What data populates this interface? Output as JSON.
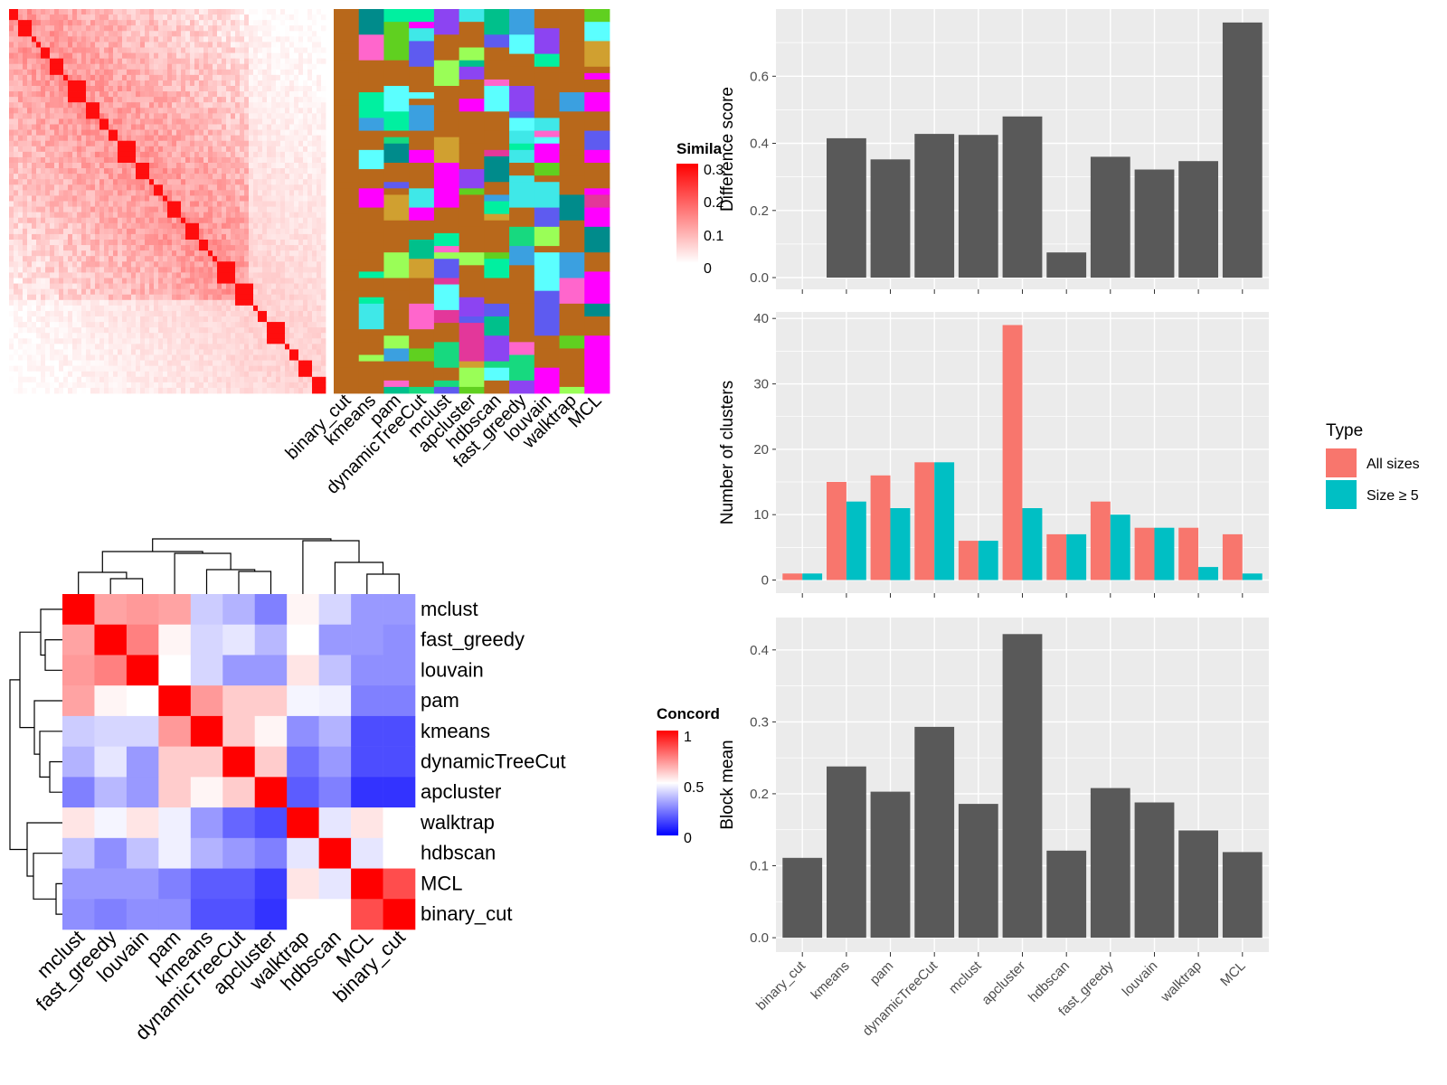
{
  "colors": {
    "panel_bg": "#ebebeb",
    "grid": "#ffffff",
    "bar_dark": "#595959",
    "all_sizes": "#f8766d",
    "size_ge5": "#00bfc4",
    "sim_high": "#ff0000",
    "conc_high": "#ff0000",
    "conc_mid": "#ffffff",
    "conc_low": "#0000ff",
    "cluster_default": "#b8681b"
  },
  "similarity_heatmap": {
    "legend_title": "Simila",
    "legend_ticks": [
      "0.3",
      "0.2",
      "0.1",
      "0"
    ],
    "methods": [
      "binary_cut",
      "kmeans",
      "pam",
      "dynamicTreeCut",
      "mclust",
      "apcluster",
      "hdbscan",
      "fast_greedy",
      "louvain",
      "walktrap",
      "MCL"
    ]
  },
  "concordance_heatmap": {
    "legend_title": "Concord",
    "legend_ticks": [
      "1",
      "0.5",
      "0"
    ],
    "row_labels": [
      "mclust",
      "fast_greedy",
      "louvain",
      "pam",
      "kmeans",
      "dynamicTreeCut",
      "apcluster",
      "walktrap",
      "hdbscan",
      "MCL",
      "binary_cut"
    ],
    "col_labels": [
      "mclust",
      "fast_greedy",
      "louvain",
      "pam",
      "kmeans",
      "dynamicTreeCut",
      "apcluster",
      "walktrap",
      "hdbscan",
      "MCL",
      "binary_cut"
    ],
    "matrix": [
      [
        1.0,
        0.68,
        0.7,
        0.68,
        0.4,
        0.35,
        0.25,
        0.52,
        0.42,
        0.3,
        0.3
      ],
      [
        0.68,
        1.0,
        0.75,
        0.52,
        0.42,
        0.45,
        0.36,
        0.5,
        0.3,
        0.3,
        0.28
      ],
      [
        0.7,
        0.75,
        1.0,
        0.5,
        0.42,
        0.3,
        0.3,
        0.55,
        0.38,
        0.28,
        0.28
      ],
      [
        0.68,
        0.52,
        0.5,
        1.0,
        0.7,
        0.6,
        0.6,
        0.48,
        0.47,
        0.25,
        0.25
      ],
      [
        0.4,
        0.42,
        0.42,
        0.7,
        1.0,
        0.6,
        0.52,
        0.28,
        0.35,
        0.15,
        0.15
      ],
      [
        0.35,
        0.45,
        0.3,
        0.6,
        0.6,
        1.0,
        0.6,
        0.22,
        0.3,
        0.15,
        0.15
      ],
      [
        0.25,
        0.36,
        0.3,
        0.6,
        0.52,
        0.6,
        1.0,
        0.18,
        0.25,
        0.1,
        0.1
      ],
      [
        0.55,
        0.48,
        0.55,
        0.47,
        0.3,
        0.2,
        0.15,
        1.0,
        0.45,
        0.55,
        0.5
      ],
      [
        0.38,
        0.28,
        0.38,
        0.47,
        0.35,
        0.3,
        0.25,
        0.45,
        1.0,
        0.45,
        0.5
      ],
      [
        0.3,
        0.3,
        0.3,
        0.25,
        0.18,
        0.18,
        0.12,
        0.55,
        0.45,
        1.0,
        0.85
      ],
      [
        0.28,
        0.25,
        0.28,
        0.28,
        0.16,
        0.16,
        0.1,
        0.5,
        0.5,
        0.85,
        1.0
      ]
    ]
  },
  "chart_data": [
    {
      "type": "bar",
      "title": "",
      "xlabel": "",
      "ylabel": "Difference score",
      "categories": [
        "binary_cut",
        "kmeans",
        "pam",
        "dynamicTreeCut",
        "mclust",
        "apcluster",
        "hdbscan",
        "fast_greedy",
        "louvain",
        "walktrap",
        "MCL"
      ],
      "values": [
        0.0,
        0.415,
        0.352,
        0.428,
        0.425,
        0.48,
        0.075,
        0.36,
        0.322,
        0.347,
        0.76
      ],
      "ylim": [
        -0.035,
        0.8
      ],
      "yticks": [
        0.0,
        0.2,
        0.4,
        0.6
      ],
      "ytick_labels": [
        "0.0",
        "0.2",
        "0.4",
        "0.6"
      ],
      "grid": true
    },
    {
      "type": "bar",
      "title": "",
      "xlabel": "",
      "ylabel": "Number of clusters",
      "categories": [
        "binary_cut",
        "kmeans",
        "pam",
        "dynamicTreeCut",
        "mclust",
        "apcluster",
        "hdbscan",
        "fast_greedy",
        "louvain",
        "walktrap",
        "MCL"
      ],
      "series": [
        {
          "name": "All sizes",
          "values": [
            1,
            15,
            16,
            18,
            6,
            39,
            7,
            12,
            8,
            8,
            7
          ]
        },
        {
          "name": "Size ≥ 5",
          "values": [
            1,
            12,
            11,
            18,
            6,
            11,
            7,
            10,
            8,
            2,
            1
          ]
        }
      ],
      "ylim": [
        -2,
        41
      ],
      "yticks": [
        0,
        10,
        20,
        30,
        40
      ],
      "ytick_labels": [
        "0",
        "10",
        "20",
        "30",
        "40"
      ],
      "legend": {
        "title": "Type",
        "position": "right"
      },
      "grid": true
    },
    {
      "type": "bar",
      "title": "",
      "xlabel": "",
      "ylabel": "Block mean",
      "categories": [
        "binary_cut",
        "kmeans",
        "pam",
        "dynamicTreeCut",
        "mclust",
        "apcluster",
        "hdbscan",
        "fast_greedy",
        "louvain",
        "walktrap",
        "MCL"
      ],
      "values": [
        0.111,
        0.238,
        0.203,
        0.293,
        0.186,
        0.422,
        0.121,
        0.208,
        0.188,
        0.149,
        0.119
      ],
      "ylim": [
        -0.02,
        0.445
      ],
      "yticks": [
        0.0,
        0.1,
        0.2,
        0.3,
        0.4
      ],
      "ytick_labels": [
        "0.0",
        "0.1",
        "0.2",
        "0.3",
        "0.4"
      ],
      "grid": true
    }
  ]
}
